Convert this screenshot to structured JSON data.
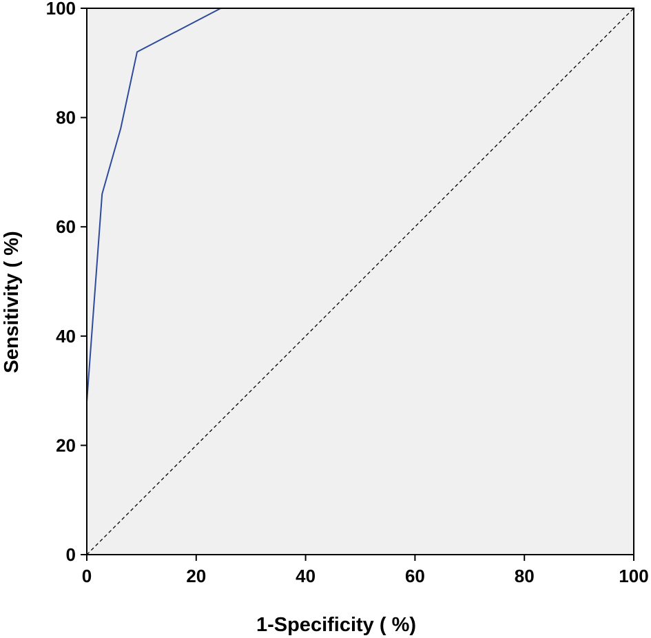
{
  "chart_data": {
    "type": "line",
    "title": "",
    "xlabel": "1-Specificity ( %)",
    "ylabel": "Sensitivity ( %)",
    "xlim": [
      0,
      100
    ],
    "ylim": [
      0,
      100
    ],
    "xticks": [
      "0",
      "20",
      "40",
      "60",
      "80",
      "100"
    ],
    "yticks": [
      "0",
      "20",
      "40",
      "60",
      "80",
      "100"
    ],
    "grid": false,
    "background": "#f0f0f0",
    "series": [
      {
        "color": "#2e4a9c",
        "style": "solid",
        "x": [
          0,
          0,
          2.8,
          6.2,
          9.2,
          24.5,
          100
        ],
        "y": [
          0,
          28,
          66,
          78,
          92,
          100,
          100
        ]
      },
      {
        "color": "#000000",
        "style": "dashed",
        "x": [
          0,
          100
        ],
        "y": [
          0,
          100
        ]
      }
    ]
  }
}
